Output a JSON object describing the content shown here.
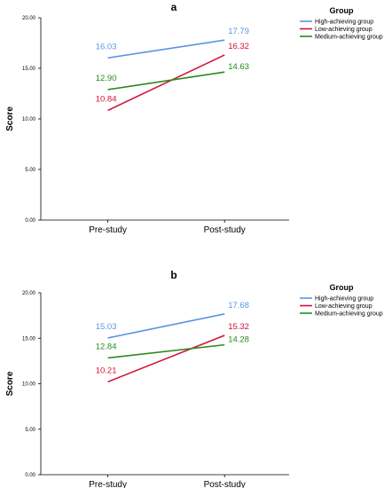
{
  "colors": {
    "high": "#5a96e0",
    "low": "#d1133b",
    "medium": "#2a8a1f",
    "axis": "#000000"
  },
  "chart_data": [
    {
      "type": "line",
      "title": "a",
      "xlabel": "",
      "ylabel": "Score",
      "ylim": [
        0,
        20
      ],
      "yticks": [
        "0.00",
        "5.00",
        "10.00",
        "15.00",
        "20.00"
      ],
      "categories": [
        "Pre-study",
        "Post-study"
      ],
      "legend_title": "Group",
      "legend_position": "top-right",
      "series": [
        {
          "name": "High-achieving group",
          "values": [
            16.03,
            17.79
          ],
          "labels": [
            "16.03",
            "17.79"
          ],
          "color": "#5a96e0"
        },
        {
          "name": "Low-achieving group",
          "values": [
            10.84,
            16.32
          ],
          "labels": [
            "10.84",
            "16.32"
          ],
          "color": "#d1133b"
        },
        {
          "name": "Medium-achieving group",
          "values": [
            12.9,
            14.63
          ],
          "labels": [
            "12.90",
            "14.63"
          ],
          "color": "#2a8a1f"
        }
      ]
    },
    {
      "type": "line",
      "title": "b",
      "xlabel": "",
      "ylabel": "Score",
      "ylim": [
        0,
        20
      ],
      "yticks": [
        "0.00",
        "5.00",
        "10.00",
        "15.00",
        "20.00"
      ],
      "categories": [
        "Pre-study",
        "Post-study"
      ],
      "legend_title": "Group",
      "legend_position": "top-right",
      "series": [
        {
          "name": "High-achieving group",
          "values": [
            15.03,
            17.68
          ],
          "labels": [
            "15.03",
            "17.68"
          ],
          "color": "#5a96e0"
        },
        {
          "name": "Low-achieving group",
          "values": [
            10.21,
            15.32
          ],
          "labels": [
            "10.21",
            "15.32"
          ],
          "color": "#d1133b"
        },
        {
          "name": "Medium-achieving group",
          "values": [
            12.84,
            14.28
          ],
          "labels": [
            "12.84",
            "14.28"
          ],
          "color": "#2a8a1f"
        }
      ]
    }
  ]
}
